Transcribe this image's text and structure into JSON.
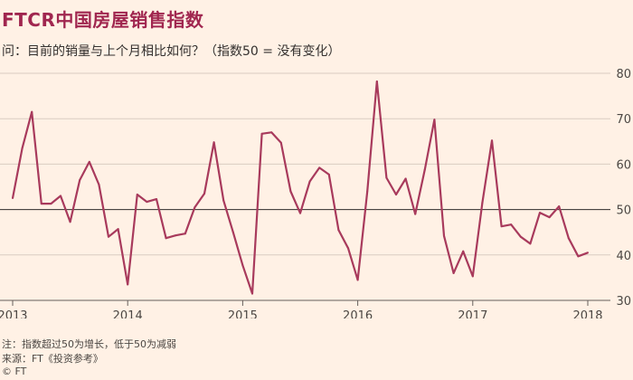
{
  "title": "FTCR中国房屋销售指数",
  "subtitle": "问：目前的销量与上个月相比如何？（指数50 = 没有变化）",
  "footnote": "注：指数超过50为增长，低于50为减弱",
  "source": "来源：FT《投资参考》",
  "copyright": "© FT",
  "colors": {
    "line": "#a83a5c",
    "title": "#a0264f",
    "grid": "#d9ccc1",
    "ref": "#33302e",
    "background": "#fff1e5"
  },
  "chart_data": {
    "type": "line",
    "title": "FTCR中国房屋销售指数",
    "xlabel": "",
    "ylabel": "",
    "ylim": [
      30,
      80
    ],
    "xlim": [
      2013.0,
      2018.0
    ],
    "y_ticks": [
      "80",
      "70",
      "60",
      "50",
      "40",
      "30"
    ],
    "y_tick_values": [
      80,
      70,
      60,
      50,
      40,
      30
    ],
    "x_ticks": [
      "2013",
      "2014",
      "2015",
      "2016",
      "2017",
      "2018"
    ],
    "x_tick_values": [
      2013,
      2014,
      2015,
      2016,
      2017,
      2018
    ],
    "reference_line": 50,
    "grid": true,
    "series": [
      {
        "x": [
          2013.0,
          2013.083,
          2013.167,
          2013.25,
          2013.333,
          2013.417,
          2013.5,
          2013.583,
          2013.667,
          2013.75,
          2013.833,
          2013.917,
          2014.0,
          2014.083,
          2014.167,
          2014.25,
          2014.333,
          2014.417,
          2014.5,
          2014.583,
          2014.667,
          2014.75,
          2014.833,
          2014.917,
          2015.0,
          2015.083,
          2015.167,
          2015.25,
          2015.333,
          2015.417,
          2015.5,
          2015.583,
          2015.667,
          2015.75,
          2015.833,
          2015.917,
          2016.0,
          2016.083,
          2016.167,
          2016.25,
          2016.333,
          2016.417,
          2016.5,
          2016.583,
          2016.667,
          2016.75,
          2016.833,
          2016.917,
          2017.0,
          2017.083,
          2017.167,
          2017.25,
          2017.333,
          2017.417,
          2017.5,
          2017.583,
          2017.667,
          2017.75,
          2017.833,
          2017.917,
          2018.0
        ],
        "values": [
          52.5,
          63.5,
          71.5,
          51.3,
          51.3,
          53.0,
          47.3,
          56.5,
          60.5,
          55.5,
          44.0,
          45.7,
          33.5,
          53.3,
          51.7,
          52.3,
          43.7,
          44.3,
          44.7,
          50.5,
          53.5,
          64.8,
          52.0,
          45.0,
          37.7,
          31.5,
          66.7,
          67.0,
          64.7,
          54.0,
          49.2,
          56.2,
          59.2,
          57.7,
          45.5,
          41.5,
          34.5,
          54.0,
          78.2,
          57.0,
          53.3,
          56.8,
          49.0,
          58.8,
          69.8,
          44.2,
          36.0,
          40.8,
          35.3,
          51.5,
          65.2,
          46.3,
          46.7,
          44.0,
          42.5,
          49.3,
          48.3,
          50.7,
          43.7,
          39.7,
          40.5
        ]
      }
    ]
  }
}
